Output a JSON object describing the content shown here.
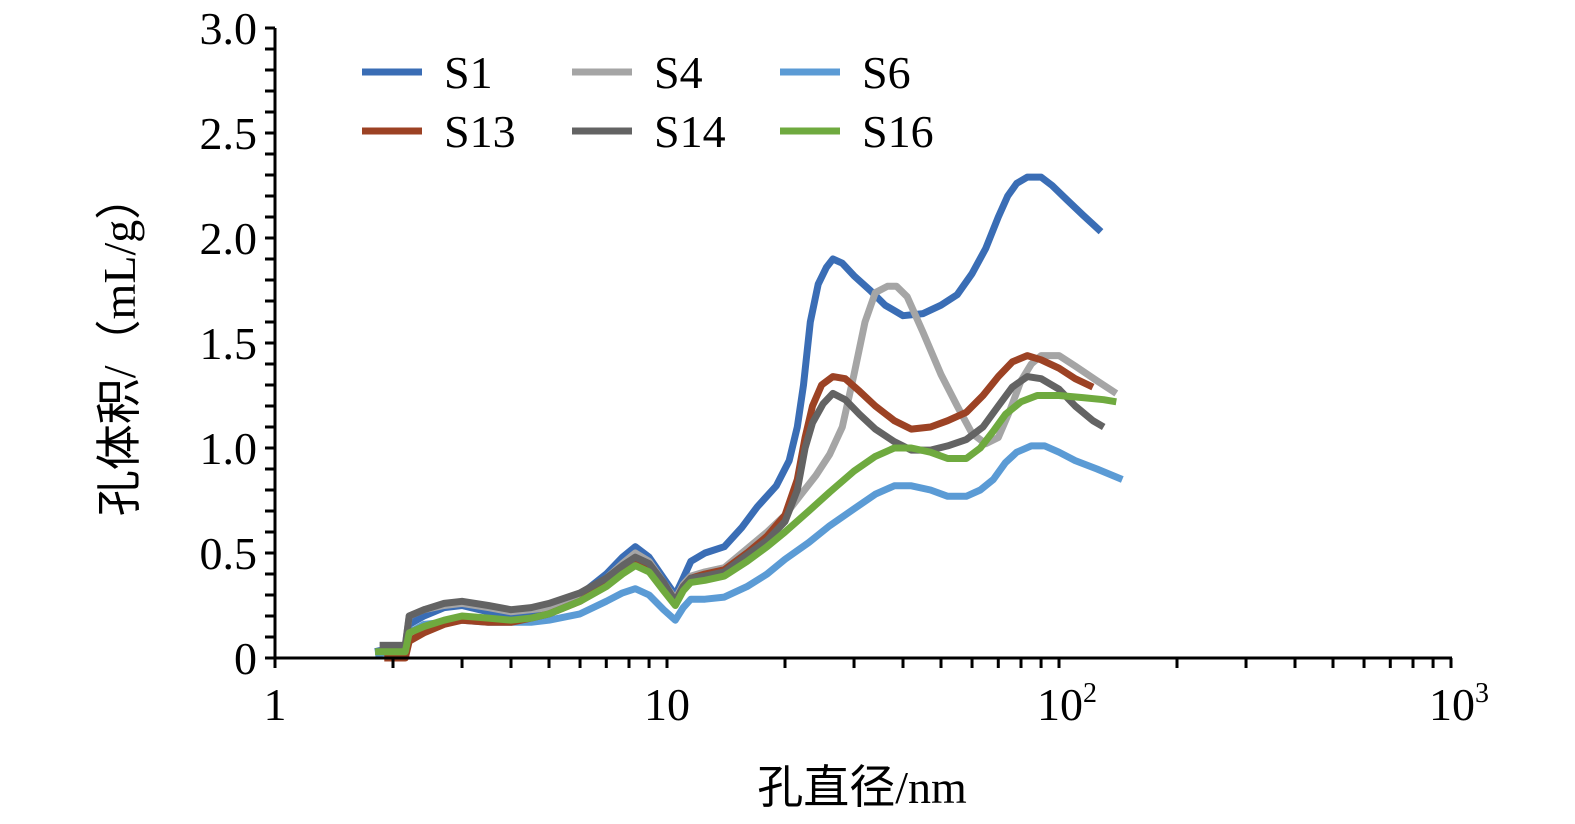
{
  "chart_data": {
    "type": "line",
    "title": "",
    "xlabel": "孔直径/nm",
    "ylabel": "孔体积/（mL/g）",
    "xscale": "log",
    "xlim": [
      1,
      1000
    ],
    "ylim": [
      0,
      3.0
    ],
    "x_ticks": [
      {
        "value": 1,
        "base": "1",
        "exp": ""
      },
      {
        "value": 10,
        "base": "10",
        "exp": ""
      },
      {
        "value": 100,
        "base": "10",
        "exp": "2"
      },
      {
        "value": 1000,
        "base": "10",
        "exp": "3"
      }
    ],
    "y_ticks": [
      {
        "value": 0,
        "label": "0"
      },
      {
        "value": 0.5,
        "label": "0.5"
      },
      {
        "value": 1.0,
        "label": "1.0"
      },
      {
        "value": 1.5,
        "label": "1.5"
      },
      {
        "value": 2.0,
        "label": "2.0"
      },
      {
        "value": 2.5,
        "label": "2.5"
      },
      {
        "value": 3.0,
        "label": "3.0"
      }
    ],
    "y_minor_step": 0.1,
    "grid": false,
    "legend": {
      "position": "top-left",
      "columns": 3
    },
    "series": [
      {
        "name": "S1",
        "color": "#3A6DB5",
        "points": [
          [
            1.8,
            0.03
          ],
          [
            2.0,
            0.05
          ],
          [
            2.15,
            0.05
          ],
          [
            2.2,
            0.16
          ],
          [
            2.4,
            0.2
          ],
          [
            2.7,
            0.24
          ],
          [
            3.0,
            0.25
          ],
          [
            3.5,
            0.22
          ],
          [
            4.0,
            0.2
          ],
          [
            4.5,
            0.21
          ],
          [
            5.0,
            0.23
          ],
          [
            6.0,
            0.3
          ],
          [
            7.0,
            0.4
          ],
          [
            7.7,
            0.48
          ],
          [
            8.3,
            0.53
          ],
          [
            9.0,
            0.48
          ],
          [
            9.8,
            0.38
          ],
          [
            10.5,
            0.3
          ],
          [
            11.0,
            0.38
          ],
          [
            11.5,
            0.46
          ],
          [
            12.5,
            0.5
          ],
          [
            14.0,
            0.53
          ],
          [
            15.5,
            0.62
          ],
          [
            17.0,
            0.72
          ],
          [
            19.0,
            0.82
          ],
          [
            20.5,
            0.94
          ],
          [
            21.5,
            1.1
          ],
          [
            22.3,
            1.3
          ],
          [
            23.2,
            1.6
          ],
          [
            24.3,
            1.78
          ],
          [
            25.5,
            1.86
          ],
          [
            26.5,
            1.9
          ],
          [
            28.0,
            1.88
          ],
          [
            30.0,
            1.82
          ],
          [
            33.0,
            1.75
          ],
          [
            36.0,
            1.68
          ],
          [
            40.0,
            1.63
          ],
          [
            45.0,
            1.64
          ],
          [
            50.0,
            1.68
          ],
          [
            55.0,
            1.73
          ],
          [
            60.0,
            1.83
          ],
          [
            65.0,
            1.95
          ],
          [
            70.0,
            2.1
          ],
          [
            74.0,
            2.2
          ],
          [
            78.0,
            2.26
          ],
          [
            83.0,
            2.29
          ],
          [
            90.0,
            2.29
          ],
          [
            96.0,
            2.25
          ],
          [
            105.0,
            2.18
          ],
          [
            115.0,
            2.11
          ],
          [
            128.0,
            2.03
          ]
        ]
      },
      {
        "name": "S4",
        "color": "#A5A5A5",
        "points": [
          [
            1.85,
            0.06
          ],
          [
            2.15,
            0.06
          ],
          [
            2.2,
            0.2
          ],
          [
            2.4,
            0.23
          ],
          [
            2.7,
            0.25
          ],
          [
            3.0,
            0.26
          ],
          [
            3.5,
            0.24
          ],
          [
            4.0,
            0.22
          ],
          [
            4.5,
            0.23
          ],
          [
            5.0,
            0.24
          ],
          [
            6.0,
            0.3
          ],
          [
            7.0,
            0.38
          ],
          [
            7.7,
            0.45
          ],
          [
            8.3,
            0.5
          ],
          [
            9.0,
            0.46
          ],
          [
            9.8,
            0.36
          ],
          [
            10.5,
            0.28
          ],
          [
            11.0,
            0.35
          ],
          [
            11.5,
            0.39
          ],
          [
            12.5,
            0.41
          ],
          [
            14.0,
            0.43
          ],
          [
            16.0,
            0.52
          ],
          [
            18.0,
            0.6
          ],
          [
            20.0,
            0.68
          ],
          [
            22.0,
            0.78
          ],
          [
            24.0,
            0.87
          ],
          [
            26.0,
            0.97
          ],
          [
            28.0,
            1.1
          ],
          [
            30.0,
            1.35
          ],
          [
            32.0,
            1.6
          ],
          [
            34.0,
            1.74
          ],
          [
            36.5,
            1.77
          ],
          [
            38.5,
            1.77
          ],
          [
            41.0,
            1.72
          ],
          [
            45.0,
            1.55
          ],
          [
            50.0,
            1.35
          ],
          [
            55.0,
            1.2
          ],
          [
            60.0,
            1.07
          ],
          [
            65.0,
            1.02
          ],
          [
            70.0,
            1.05
          ],
          [
            75.0,
            1.18
          ],
          [
            80.0,
            1.32
          ],
          [
            85.0,
            1.4
          ],
          [
            90.0,
            1.44
          ],
          [
            100.0,
            1.44
          ],
          [
            110.0,
            1.39
          ],
          [
            125.0,
            1.32
          ],
          [
            140.0,
            1.26
          ]
        ]
      },
      {
        "name": "S6",
        "color": "#5B9BD5",
        "points": [
          [
            1.8,
            0.02
          ],
          [
            2.0,
            0.03
          ],
          [
            2.15,
            0.03
          ],
          [
            2.2,
            0.12
          ],
          [
            2.4,
            0.16
          ],
          [
            2.7,
            0.17
          ],
          [
            3.0,
            0.18
          ],
          [
            3.5,
            0.17
          ],
          [
            4.0,
            0.17
          ],
          [
            4.5,
            0.17
          ],
          [
            5.0,
            0.18
          ],
          [
            6.0,
            0.21
          ],
          [
            7.0,
            0.27
          ],
          [
            7.7,
            0.31
          ],
          [
            8.3,
            0.33
          ],
          [
            9.0,
            0.3
          ],
          [
            9.8,
            0.23
          ],
          [
            10.5,
            0.18
          ],
          [
            11.0,
            0.24
          ],
          [
            11.5,
            0.28
          ],
          [
            12.5,
            0.28
          ],
          [
            14.0,
            0.29
          ],
          [
            16.0,
            0.34
          ],
          [
            18.0,
            0.4
          ],
          [
            20.0,
            0.47
          ],
          [
            23.0,
            0.55
          ],
          [
            26.0,
            0.63
          ],
          [
            30.0,
            0.71
          ],
          [
            34.0,
            0.78
          ],
          [
            38.0,
            0.82
          ],
          [
            42.0,
            0.82
          ],
          [
            47.0,
            0.8
          ],
          [
            52.0,
            0.77
          ],
          [
            58.0,
            0.77
          ],
          [
            63.0,
            0.8
          ],
          [
            68.0,
            0.85
          ],
          [
            73.0,
            0.93
          ],
          [
            78.0,
            0.98
          ],
          [
            85.0,
            1.01
          ],
          [
            92.0,
            1.01
          ],
          [
            100.0,
            0.98
          ],
          [
            110.0,
            0.94
          ],
          [
            125.0,
            0.9
          ],
          [
            145.0,
            0.85
          ]
        ]
      },
      {
        "name": "S13",
        "color": "#9C4224",
        "points": [
          [
            1.9,
            0.0
          ],
          [
            2.15,
            0.0
          ],
          [
            2.2,
            0.08
          ],
          [
            2.4,
            0.12
          ],
          [
            2.7,
            0.16
          ],
          [
            3.0,
            0.18
          ],
          [
            3.5,
            0.17
          ],
          [
            4.0,
            0.17
          ],
          [
            4.5,
            0.19
          ],
          [
            5.0,
            0.21
          ],
          [
            6.0,
            0.27
          ],
          [
            7.0,
            0.35
          ],
          [
            7.7,
            0.41
          ],
          [
            8.3,
            0.45
          ],
          [
            9.0,
            0.42
          ],
          [
            9.8,
            0.34
          ],
          [
            10.5,
            0.27
          ],
          [
            11.0,
            0.34
          ],
          [
            11.5,
            0.38
          ],
          [
            12.5,
            0.4
          ],
          [
            14.0,
            0.42
          ],
          [
            16.0,
            0.5
          ],
          [
            18.0,
            0.58
          ],
          [
            20.0,
            0.68
          ],
          [
            21.5,
            0.85
          ],
          [
            22.5,
            1.05
          ],
          [
            23.5,
            1.2
          ],
          [
            24.8,
            1.3
          ],
          [
            26.5,
            1.34
          ],
          [
            28.5,
            1.33
          ],
          [
            31.0,
            1.27
          ],
          [
            34.0,
            1.2
          ],
          [
            38.0,
            1.13
          ],
          [
            42.0,
            1.09
          ],
          [
            47.0,
            1.1
          ],
          [
            52.0,
            1.13
          ],
          [
            58.0,
            1.17
          ],
          [
            64.0,
            1.25
          ],
          [
            70.0,
            1.34
          ],
          [
            76.0,
            1.41
          ],
          [
            83.0,
            1.44
          ],
          [
            90.0,
            1.42
          ],
          [
            100.0,
            1.38
          ],
          [
            110.0,
            1.33
          ],
          [
            122.0,
            1.29
          ]
        ]
      },
      {
        "name": "S14",
        "color": "#636363",
        "points": [
          [
            1.85,
            0.06
          ],
          [
            2.15,
            0.06
          ],
          [
            2.2,
            0.2
          ],
          [
            2.4,
            0.23
          ],
          [
            2.7,
            0.26
          ],
          [
            3.0,
            0.27
          ],
          [
            3.5,
            0.25
          ],
          [
            4.0,
            0.23
          ],
          [
            4.5,
            0.24
          ],
          [
            5.0,
            0.26
          ],
          [
            6.0,
            0.31
          ],
          [
            7.0,
            0.38
          ],
          [
            7.7,
            0.44
          ],
          [
            8.3,
            0.48
          ],
          [
            9.0,
            0.45
          ],
          [
            9.8,
            0.36
          ],
          [
            10.5,
            0.27
          ],
          [
            11.0,
            0.34
          ],
          [
            11.5,
            0.38
          ],
          [
            12.5,
            0.39
          ],
          [
            14.0,
            0.41
          ],
          [
            16.0,
            0.49
          ],
          [
            18.0,
            0.56
          ],
          [
            20.0,
            0.65
          ],
          [
            21.5,
            0.8
          ],
          [
            22.5,
            1.0
          ],
          [
            23.5,
            1.12
          ],
          [
            25.0,
            1.21
          ],
          [
            26.5,
            1.26
          ],
          [
            28.5,
            1.23
          ],
          [
            31.0,
            1.16
          ],
          [
            34.0,
            1.09
          ],
          [
            38.0,
            1.03
          ],
          [
            42.0,
            0.99
          ],
          [
            47.0,
            0.99
          ],
          [
            52.0,
            1.01
          ],
          [
            58.0,
            1.04
          ],
          [
            64.0,
            1.1
          ],
          [
            70.0,
            1.2
          ],
          [
            76.0,
            1.29
          ],
          [
            83.0,
            1.34
          ],
          [
            90.0,
            1.33
          ],
          [
            100.0,
            1.28
          ],
          [
            110.0,
            1.2
          ],
          [
            122.0,
            1.13
          ],
          [
            130.0,
            1.1
          ]
        ]
      },
      {
        "name": "S16",
        "color": "#6FAA3F",
        "points": [
          [
            1.8,
            0.03
          ],
          [
            2.15,
            0.03
          ],
          [
            2.2,
            0.12
          ],
          [
            2.4,
            0.15
          ],
          [
            2.7,
            0.18
          ],
          [
            3.0,
            0.2
          ],
          [
            3.5,
            0.19
          ],
          [
            4.0,
            0.18
          ],
          [
            4.5,
            0.19
          ],
          [
            5.0,
            0.21
          ],
          [
            6.0,
            0.27
          ],
          [
            7.0,
            0.34
          ],
          [
            7.7,
            0.4
          ],
          [
            8.3,
            0.44
          ],
          [
            9.0,
            0.41
          ],
          [
            9.8,
            0.32
          ],
          [
            10.5,
            0.25
          ],
          [
            11.0,
            0.32
          ],
          [
            11.5,
            0.36
          ],
          [
            12.5,
            0.37
          ],
          [
            14.0,
            0.39
          ],
          [
            16.0,
            0.46
          ],
          [
            18.0,
            0.53
          ],
          [
            20.0,
            0.6
          ],
          [
            23.0,
            0.7
          ],
          [
            26.0,
            0.79
          ],
          [
            30.0,
            0.89
          ],
          [
            34.0,
            0.96
          ],
          [
            38.0,
            1.0
          ],
          [
            42.0,
            1.0
          ],
          [
            47.0,
            0.98
          ],
          [
            52.0,
            0.95
          ],
          [
            58.0,
            0.95
          ],
          [
            63.0,
            1.0
          ],
          [
            68.0,
            1.08
          ],
          [
            73.0,
            1.16
          ],
          [
            80.0,
            1.22
          ],
          [
            88.0,
            1.25
          ],
          [
            100.0,
            1.25
          ],
          [
            115.0,
            1.24
          ],
          [
            130.0,
            1.23
          ],
          [
            140.0,
            1.22
          ]
        ]
      }
    ]
  }
}
